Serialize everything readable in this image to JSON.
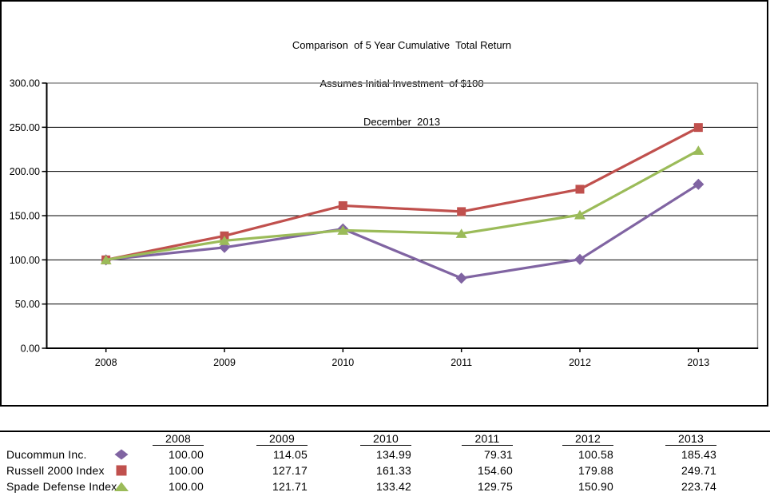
{
  "window": {
    "background": "#ffffff"
  },
  "chart": {
    "title_lines": [
      "Comparison  of 5 Year Cumulative  Total Return",
      "Assumes Initial Investment  of $100",
      "December  2013"
    ]
  },
  "chart_data": {
    "type": "line",
    "title": "Comparison of 5 Year Cumulative Total Return",
    "subtitle": "Assumes Initial Investment of $100",
    "date_label": "December 2013",
    "categories": [
      "2008",
      "2009",
      "2010",
      "2011",
      "2012",
      "2013"
    ],
    "series": [
      {
        "name": "Ducommun Inc.",
        "marker": "diamond",
        "color": "#8064A2",
        "values": [
          100.0,
          114.05,
          134.99,
          79.31,
          100.58,
          185.43
        ]
      },
      {
        "name": "Russell 2000 Index",
        "marker": "square",
        "color": "#C0504D",
        "values": [
          100.0,
          127.17,
          161.33,
          154.6,
          179.88,
          249.71
        ]
      },
      {
        "name": "Spade Defense Index",
        "marker": "triangle",
        "color": "#9BBB59",
        "values": [
          100.0,
          121.71,
          133.42,
          129.75,
          150.9,
          223.74
        ]
      }
    ],
    "ylim": [
      0,
      300
    ],
    "y_ticks": [
      "300.00",
      "250.00",
      "200.00",
      "150.00",
      "100.00",
      "50.00",
      "0.00"
    ],
    "grid": true,
    "legend_position": "table-below-chart",
    "axis_color": "#000000",
    "plot_border_color": "#8e8e8e"
  },
  "table": {
    "rows": [
      {
        "label": "Ducommun Inc.",
        "values": [
          "100.00",
          "114.05",
          "134.99",
          "79.31",
          "100.58",
          "185.43"
        ]
      },
      {
        "label": "Russell 2000 Index",
        "values": [
          "100.00",
          "127.17",
          "161.33",
          "154.60",
          "179.88",
          "249.71"
        ]
      },
      {
        "label": "Spade Defense Index",
        "values": [
          "100.00",
          "121.71",
          "133.42",
          "129.75",
          "150.90",
          "223.74"
        ]
      }
    ]
  }
}
